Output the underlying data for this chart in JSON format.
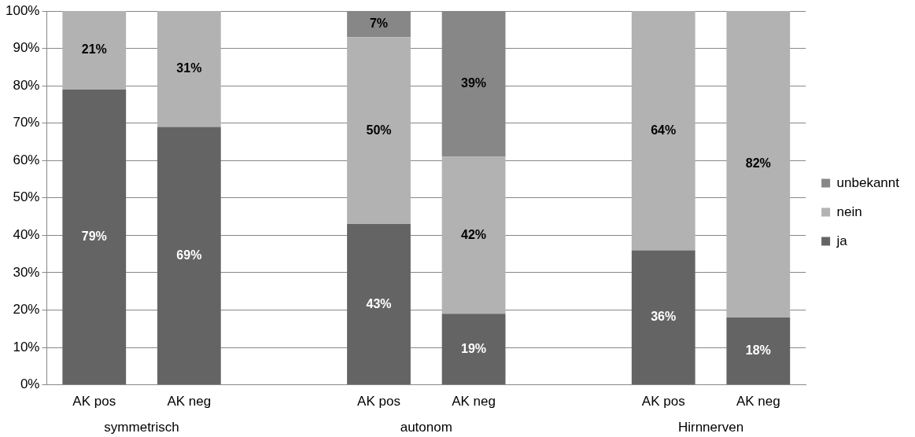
{
  "chart_data": {
    "type": "bar",
    "stacked": true,
    "categories": [
      "AK pos",
      "AK neg",
      null,
      "AK pos",
      "AK neg",
      null,
      "AK pos",
      "AK neg"
    ],
    "series": [
      {
        "name": "ja",
        "color": "#646464",
        "values": [
          79,
          69,
          null,
          43,
          19,
          null,
          36,
          18
        ],
        "value_labels": [
          "79%",
          "69%",
          null,
          "43%",
          "19%",
          null,
          "36%",
          "18%"
        ]
      },
      {
        "name": "nein",
        "color": "#b2b2b2",
        "values": [
          21,
          31,
          null,
          50,
          42,
          null,
          64,
          82
        ],
        "value_labels": [
          "21%",
          "31%",
          null,
          "50%",
          "42%",
          null,
          "64%",
          "82%"
        ]
      },
      {
        "name": "unbekannt",
        "color": "#878787",
        "values": [
          null,
          null,
          null,
          7,
          39,
          null,
          null,
          null
        ],
        "value_labels": [
          null,
          null,
          null,
          "7%",
          "39%",
          null,
          null,
          null
        ]
      }
    ],
    "ylim": [
      0,
      100
    ],
    "yticks": [
      {
        "value": 0,
        "label": "0%"
      },
      {
        "value": 10,
        "label": "10%"
      },
      {
        "value": 20,
        "label": "20%"
      },
      {
        "value": 30,
        "label": "30%"
      },
      {
        "value": 40,
        "label": "40%"
      },
      {
        "value": 50,
        "label": "50%"
      },
      {
        "value": 60,
        "label": "60%"
      },
      {
        "value": 70,
        "label": "70%"
      },
      {
        "value": 80,
        "label": "80%"
      },
      {
        "value": 90,
        "label": "90%"
      },
      {
        "value": 100,
        "label": "100%"
      }
    ],
    "grid": "y",
    "legend": "right",
    "annotations": [
      "symmetrisch",
      "autonom",
      "Hirnnerven"
    ]
  }
}
